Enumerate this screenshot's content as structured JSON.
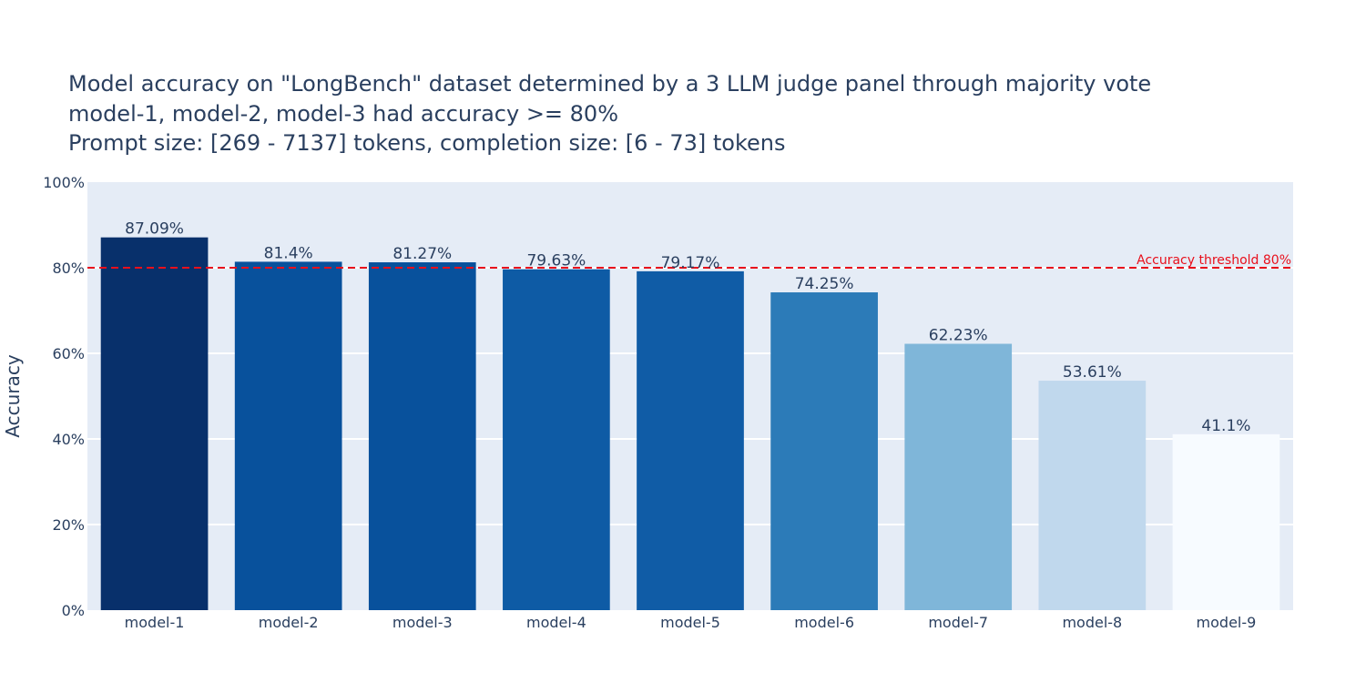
{
  "title": {
    "line1": "Model accuracy on \"LongBench\" dataset determined by a 3 LLM judge panel through majority vote",
    "line2": "model-1, model-2, model-3 had accuracy >= 80%",
    "line3": "Prompt size: [269 - 7137] tokens, completion size: [6 - 73] tokens"
  },
  "chart_data": {
    "type": "bar",
    "categories": [
      "model-1",
      "model-2",
      "model-3",
      "model-4",
      "model-5",
      "model-6",
      "model-7",
      "model-8",
      "model-9"
    ],
    "values": [
      87.09,
      81.4,
      81.27,
      79.63,
      79.17,
      74.25,
      62.23,
      53.61,
      41.1
    ],
    "value_labels": [
      "87.09%",
      "81.4%",
      "81.27%",
      "79.63%",
      "79.17%",
      "74.25%",
      "62.23%",
      "53.61%",
      "41.1%"
    ],
    "bar_colors": [
      "#08306b",
      "#08519c",
      "#08519c",
      "#0e5ba5",
      "#105ca6",
      "#2c7bb8",
      "#7fb6d9",
      "#c0d8ed",
      "#f7fbff"
    ],
    "ylabel": "Accuracy",
    "xlabel": "",
    "ylim": [
      0,
      100
    ],
    "yticks": [
      0,
      20,
      40,
      60,
      80,
      100
    ],
    "ytick_labels": [
      "0%",
      "20%",
      "40%",
      "60%",
      "80%",
      "100%"
    ],
    "threshold": {
      "value": 80,
      "label": "Accuracy threshold 80%",
      "color": "#e8101c"
    },
    "plot_bgcolor": "#e5ecf6",
    "gridlines": true
  }
}
